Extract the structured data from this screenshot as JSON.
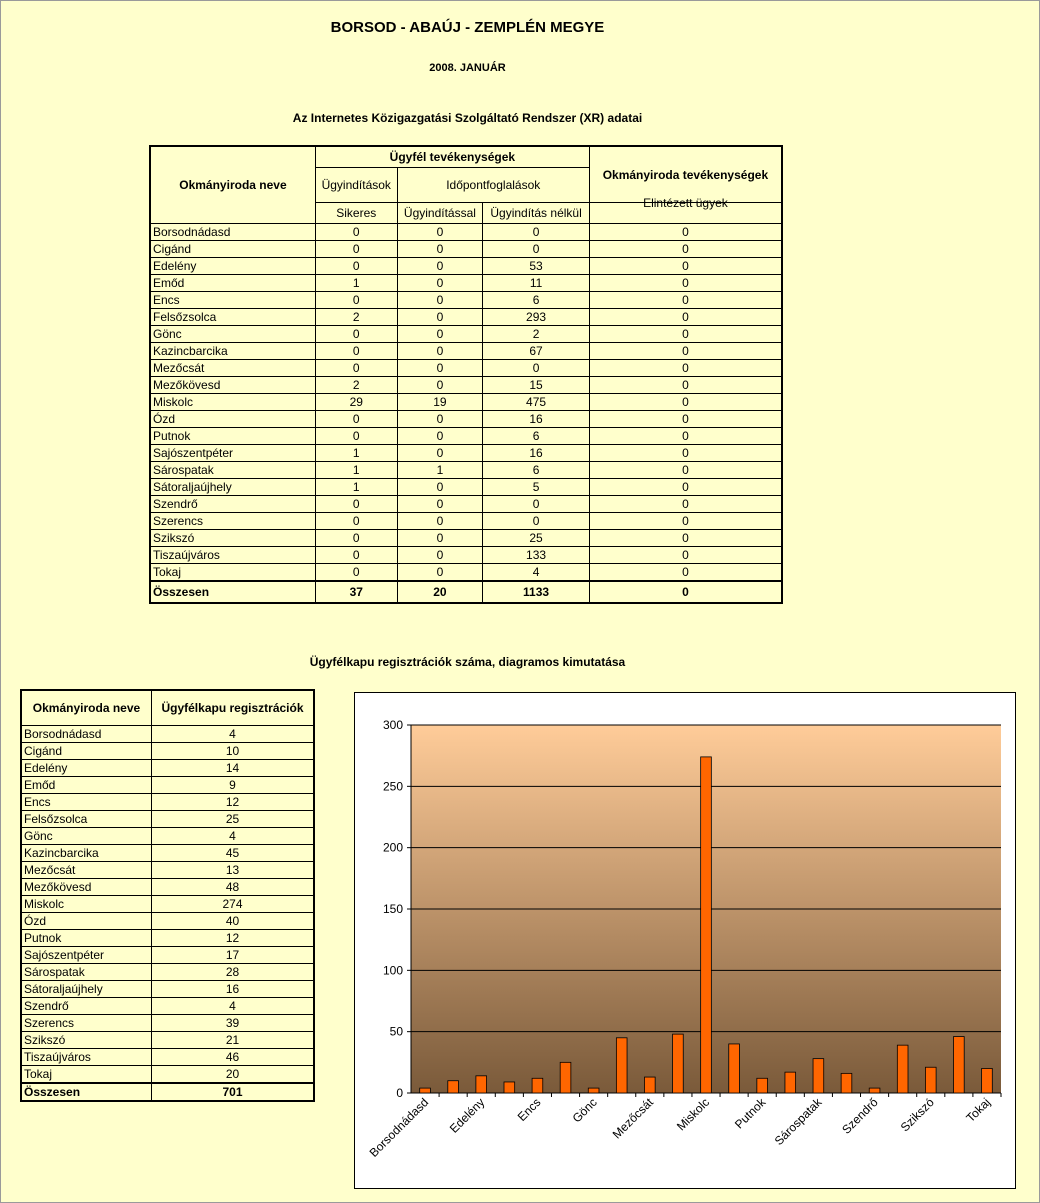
{
  "titles": {
    "county": "BORSOD - ABAÚJ - ZEMPLÉN MEGYE",
    "period": "2008. JANUÁR",
    "table_title": "Az Internetes Közigazgatási Szolgáltató Rendszer (XR) adatai",
    "chart_title": "Ügyfélkapu regisztrációk száma, diagramos kimutatása"
  },
  "main_table": {
    "headers": {
      "office_name": "Okmányiroda neve",
      "client_activities": "Ügyfél tevékenységek",
      "office_activities": "Okmányiroda tevékenységek",
      "case_starts": "Ügyindítások",
      "appointments": "Időpontfoglalások",
      "successful": "Sikeres",
      "with_case_start": "Ügyindítással",
      "without_case_start": "Ügyindítás nélkül",
      "completed_cases": "Elintézett ügyek"
    },
    "rows": [
      {
        "name": "Borsodnádasd",
        "a": "0",
        "b": "0",
        "c": "0",
        "d": "0"
      },
      {
        "name": "Cigánd",
        "a": "0",
        "b": "0",
        "c": "0",
        "d": "0"
      },
      {
        "name": "Edelény",
        "a": "0",
        "b": "0",
        "c": "53",
        "d": "0"
      },
      {
        "name": "Emőd",
        "a": "1",
        "b": "0",
        "c": "11",
        "d": "0"
      },
      {
        "name": "Encs",
        "a": "0",
        "b": "0",
        "c": "6",
        "d": "0"
      },
      {
        "name": "Felsőzsolca",
        "a": "2",
        "b": "0",
        "c": "293",
        "d": "0"
      },
      {
        "name": "Gönc",
        "a": "0",
        "b": "0",
        "c": "2",
        "d": "0"
      },
      {
        "name": "Kazincbarcika",
        "a": "0",
        "b": "0",
        "c": "67",
        "d": "0"
      },
      {
        "name": "Mezőcsát",
        "a": "0",
        "b": "0",
        "c": "0",
        "d": "0"
      },
      {
        "name": "Mezőkövesd",
        "a": "2",
        "b": "0",
        "c": "15",
        "d": "0"
      },
      {
        "name": "Miskolc",
        "a": "29",
        "b": "19",
        "c": "475",
        "d": "0"
      },
      {
        "name": "Ózd",
        "a": "0",
        "b": "0",
        "c": "16",
        "d": "0"
      },
      {
        "name": "Putnok",
        "a": "0",
        "b": "0",
        "c": "6",
        "d": "0"
      },
      {
        "name": "Sajószentpéter",
        "a": "1",
        "b": "0",
        "c": "16",
        "d": "0"
      },
      {
        "name": "Sárospatak",
        "a": "1",
        "b": "1",
        "c": "6",
        "d": "0"
      },
      {
        "name": "Sátoraljaújhely",
        "a": "1",
        "b": "0",
        "c": "5",
        "d": "0"
      },
      {
        "name": "Szendrő",
        "a": "0",
        "b": "0",
        "c": "0",
        "d": "0"
      },
      {
        "name": "Szerencs",
        "a": "0",
        "b": "0",
        "c": "0",
        "d": "0"
      },
      {
        "name": "Szikszó",
        "a": "0",
        "b": "0",
        "c": "25",
        "d": "0"
      },
      {
        "name": "Tiszaújváros",
        "a": "0",
        "b": "0",
        "c": "133",
        "d": "0"
      },
      {
        "name": "Tokaj",
        "a": "0",
        "b": "0",
        "c": "4",
        "d": "0"
      }
    ],
    "total": {
      "name": "Összesen",
      "a": "37",
      "b": "20",
      "c": "1133",
      "d": "0"
    }
  },
  "reg_table": {
    "headers": {
      "office_name": "Okmányiroda neve",
      "registrations": "Ügyfélkapu regisztrációk"
    },
    "rows": [
      {
        "name": "Borsodnádasd",
        "v": "4"
      },
      {
        "name": "Cigánd",
        "v": "10"
      },
      {
        "name": "Edelény",
        "v": "14"
      },
      {
        "name": "Emőd",
        "v": "9"
      },
      {
        "name": "Encs",
        "v": "12"
      },
      {
        "name": "Felsőzsolca",
        "v": "25"
      },
      {
        "name": "Gönc",
        "v": "4"
      },
      {
        "name": "Kazincbarcika",
        "v": "45"
      },
      {
        "name": "Mezőcsát",
        "v": "13"
      },
      {
        "name": "Mezőkövesd",
        "v": "48"
      },
      {
        "name": "Miskolc",
        "v": "274"
      },
      {
        "name": "Ózd",
        "v": "40"
      },
      {
        "name": "Putnok",
        "v": "12"
      },
      {
        "name": "Sajószentpéter",
        "v": "17"
      },
      {
        "name": "Sárospatak",
        "v": "28"
      },
      {
        "name": "Sátoraljaújhely",
        "v": "16"
      },
      {
        "name": "Szendrő",
        "v": "4"
      },
      {
        "name": "Szerencs",
        "v": "39"
      },
      {
        "name": "Szikszó",
        "v": "21"
      },
      {
        "name": "Tiszaújváros",
        "v": "46"
      },
      {
        "name": "Tokaj",
        "v": "20"
      }
    ],
    "total": {
      "name": "Összesen",
      "v": "701"
    }
  },
  "chart_data": {
    "type": "bar",
    "categories": [
      "Borsodnádasd",
      "Cigánd",
      "Edelény",
      "Emőd",
      "Encs",
      "Felsőzsolca",
      "Gönc",
      "Kazincbarcika",
      "Mezőcsát",
      "Mezőkövesd",
      "Miskolc",
      "Ózd",
      "Putnok",
      "Sajószentpéter",
      "Sárospatak",
      "Sátoraljaújhely",
      "Szendrő",
      "Szerencs",
      "Szikszó",
      "Tiszaújváros",
      "Tokaj"
    ],
    "values": [
      4,
      10,
      14,
      9,
      12,
      25,
      4,
      45,
      13,
      48,
      274,
      40,
      12,
      17,
      28,
      16,
      4,
      39,
      21,
      46,
      20
    ],
    "tick_labels_shown": [
      "Borsodnádasd",
      "Edelény",
      "Encs",
      "Gönc",
      "Mezőcsát",
      "Miskolc",
      "Putnok",
      "Sárospatak",
      "Szendrő",
      "Szikszó",
      "Tokaj"
    ],
    "yticks": [
      "0",
      "50",
      "100",
      "150",
      "200",
      "250",
      "300"
    ],
    "ylim": [
      0,
      300
    ],
    "grid": true,
    "legend": "none",
    "bar_color": "#ff6600",
    "plot_gradient_top": "#ffcc99",
    "plot_gradient_bottom": "#7a5a3a"
  }
}
